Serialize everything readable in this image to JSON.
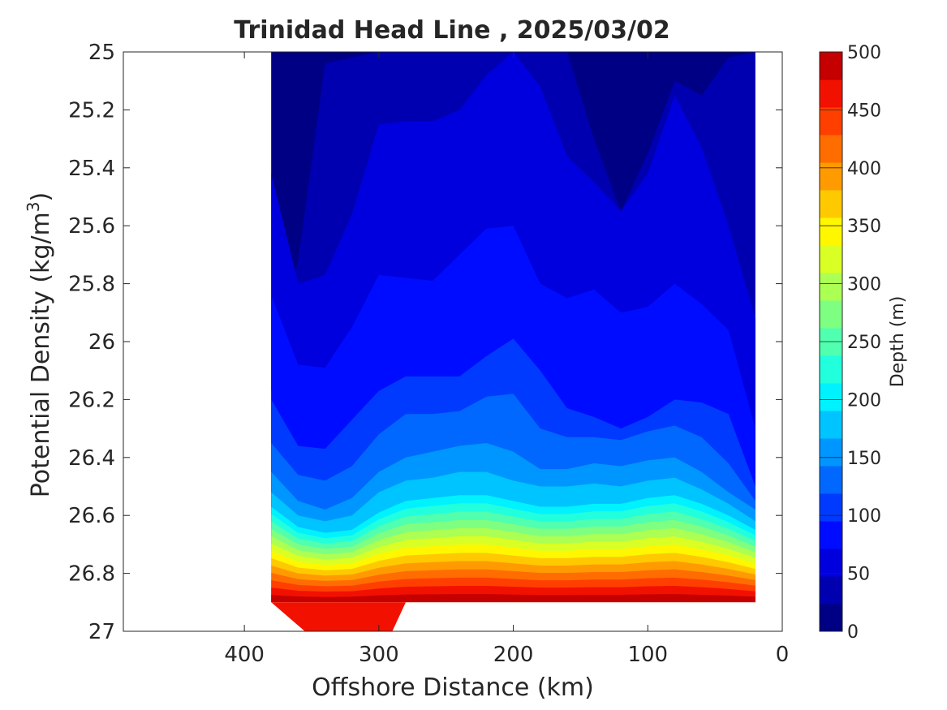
{
  "chart_data": {
    "type": "heatmap",
    "title": "Trinidad Head Line , 2025/03/02",
    "xlabel": "Offshore Distance (km)",
    "ylabel": "Potential Density (kg/m",
    "ylabel_superscript": "3",
    "ylabel_suffix": ")",
    "xlim": [
      490,
      0
    ],
    "ylim": [
      25,
      27
    ],
    "x_reversed": true,
    "y_reversed": true,
    "x_ticks": [
      400,
      300,
      200,
      100,
      0
    ],
    "x_tick_labels": [
      "400",
      "300",
      "200",
      "100",
      "0"
    ],
    "y_ticks": [
      25,
      25.2,
      25.4,
      25.6,
      25.8,
      26,
      26.2,
      26.4,
      26.6,
      26.8,
      27
    ],
    "y_tick_labels": [
      "25",
      "25.2",
      "25.4",
      "25.6",
      "25.8",
      "26",
      "26.2",
      "26.4",
      "26.6",
      "26.8",
      "27"
    ],
    "colorbar": {
      "label": "Depth (m)",
      "range": [
        0,
        500
      ],
      "levels": [
        0,
        25,
        50,
        75,
        100,
        125,
        150,
        175,
        200,
        225,
        250,
        275,
        300,
        325,
        350,
        375,
        400,
        425,
        450,
        475,
        500
      ],
      "ticks": [
        0,
        50,
        100,
        150,
        200,
        250,
        300,
        350,
        400,
        450,
        500
      ],
      "tick_labels": [
        "0",
        "50",
        "100",
        "150",
        "200",
        "250",
        "300",
        "350",
        "400",
        "450",
        "500"
      ],
      "colors": [
        "#000085",
        "#0000b0",
        "#0000de",
        "#000cff",
        "#003aff",
        "#0068ff",
        "#0096ff",
        "#00c4ff",
        "#00f2ff",
        "#22ffdd",
        "#50ffaf",
        "#7eff81",
        "#acff53",
        "#daff25",
        "#fff700",
        "#ffc900",
        "#ff9b00",
        "#ff6d00",
        "#ff3f00",
        "#f21100",
        "#c40000"
      ]
    },
    "grid": false,
    "contour_boundaries": {
      "x": [
        380,
        360,
        340,
        320,
        300,
        280,
        260,
        240,
        220,
        200,
        180,
        160,
        140,
        120,
        100,
        80,
        60,
        40,
        20
      ],
      "level_25": [
        26.17,
        25.72,
        25.04,
        25.02,
        25.0,
        25.0,
        25.0,
        25.0,
        25.0,
        25.0,
        25.0,
        25.0,
        25.3,
        25.55,
        25.35,
        25.1,
        25.15,
        25.02,
        25.0
      ],
      "level_50": [
        25.42,
        25.8,
        25.77,
        25.56,
        25.25,
        25.24,
        25.24,
        25.2,
        25.08,
        25.0,
        25.12,
        25.36,
        25.45,
        25.55,
        25.42,
        25.15,
        25.33,
        25.6,
        25.92
      ],
      "level_75": [
        25.84,
        26.08,
        26.09,
        25.95,
        25.77,
        25.78,
        25.79,
        25.7,
        25.61,
        25.6,
        25.8,
        25.85,
        25.82,
        25.9,
        25.88,
        25.8,
        25.87,
        25.96,
        26.3
      ],
      "level_100": [
        26.2,
        26.36,
        26.37,
        26.27,
        26.17,
        26.12,
        26.12,
        26.12,
        26.05,
        25.99,
        26.1,
        26.23,
        26.26,
        26.3,
        26.26,
        26.2,
        26.21,
        26.25,
        26.5
      ],
      "level_125": [
        26.35,
        26.46,
        26.48,
        26.43,
        26.32,
        26.25,
        26.25,
        26.24,
        26.19,
        26.18,
        26.3,
        26.33,
        26.33,
        26.34,
        26.31,
        26.29,
        26.33,
        26.42,
        26.55
      ],
      "level_150": [
        26.45,
        26.55,
        26.58,
        26.54,
        26.45,
        26.4,
        26.38,
        26.36,
        26.35,
        26.38,
        26.44,
        26.44,
        26.42,
        26.43,
        26.41,
        26.4,
        26.45,
        26.52,
        26.58
      ],
      "level_175": [
        26.52,
        26.6,
        26.62,
        26.6,
        26.52,
        26.48,
        26.47,
        26.45,
        26.45,
        26.48,
        26.5,
        26.5,
        26.49,
        26.5,
        26.48,
        26.47,
        26.51,
        26.56,
        26.62
      ],
      "level_200": [
        26.57,
        26.64,
        26.66,
        26.65,
        26.59,
        26.55,
        26.54,
        26.53,
        26.53,
        26.55,
        26.57,
        26.57,
        26.56,
        26.56,
        26.54,
        26.53,
        26.56,
        26.6,
        26.65
      ]
    }
  }
}
